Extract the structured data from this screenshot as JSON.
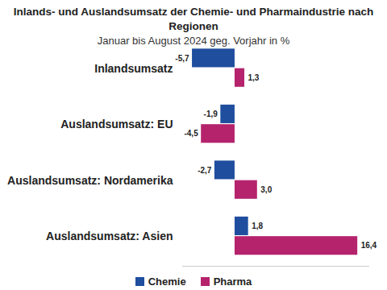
{
  "chart_data": {
    "type": "bar",
    "orientation": "horizontal",
    "title": "Inlands- und Auslandsumsatz der Chemie- und Pharmaindustrie nach Regionen",
    "subtitle": "Januar bis August 2024 geg. Vorjahr in %",
    "categories": [
      "Inlandsumsatz",
      "Auslandsumsatz: EU",
      "Auslandsumsatz: Nordamerika",
      "Auslandsumsatz: Asien"
    ],
    "series": [
      {
        "name": "Chemie",
        "color": "#1f4e9e",
        "values": [
          -5.7,
          -1.9,
          -2.7,
          1.8
        ],
        "value_labels": [
          "-5,7",
          "-1,9",
          "-2,7",
          "1,8"
        ]
      },
      {
        "name": "Pharma",
        "color": "#b5236d",
        "values": [
          1.3,
          -4.5,
          3.0,
          16.4
        ],
        "value_labels": [
          "1,3",
          "-4,5",
          "3,0",
          "16,4"
        ]
      }
    ],
    "xlim": [
      -7,
      18
    ],
    "data_labels": true,
    "tick_labels": false,
    "legend": "bottom"
  }
}
